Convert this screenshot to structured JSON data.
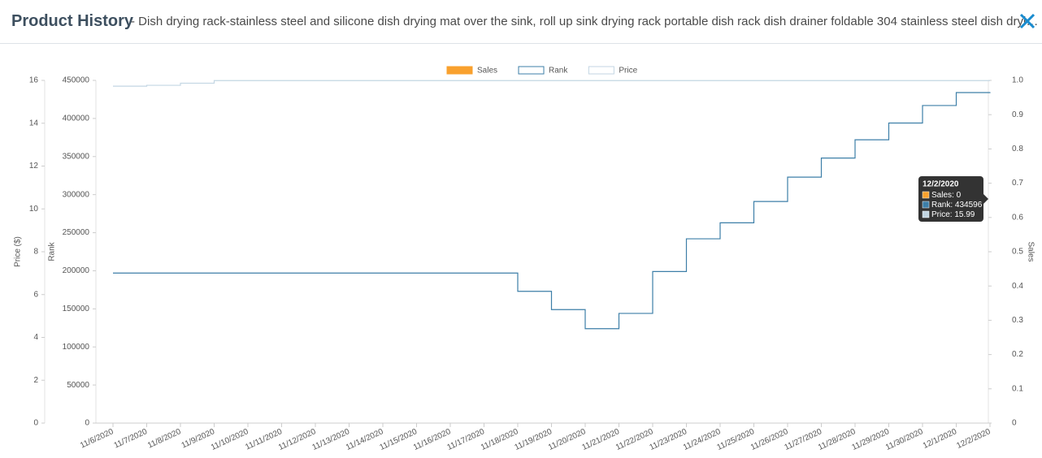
{
  "header": {
    "title": "Product History",
    "subtitle": "- Dish drying rack-stainless steel and silicone dish drying mat over the sink, roll up sink drying rack portable dish rack dish drainer foldable 304 stainless steel dish dryi…"
  },
  "chart_data": {
    "type": "combo",
    "categories": [
      "11/6/2020",
      "11/7/2020",
      "11/8/2020",
      "11/9/2020",
      "11/10/2020",
      "11/11/2020",
      "11/12/2020",
      "11/13/2020",
      "11/14/2020",
      "11/15/2020",
      "11/16/2020",
      "11/17/2020",
      "11/18/2020",
      "11/19/2020",
      "11/20/2020",
      "11/21/2020",
      "11/22/2020",
      "11/23/2020",
      "11/24/2020",
      "11/25/2020",
      "11/26/2020",
      "11/27/2020",
      "11/28/2020",
      "11/29/2020",
      "11/30/2020",
      "12/1/2020",
      "12/2/2020"
    ],
    "y3_label": "Price ($)",
    "y_label": "Rank",
    "y2_label": "Sales",
    "ylim": [
      0,
      450000
    ],
    "yticks": [
      0,
      50000,
      100000,
      150000,
      200000,
      250000,
      300000,
      350000,
      400000,
      450000
    ],
    "y2lim": [
      0,
      1
    ],
    "y2ticks": [
      0,
      0.1,
      0.2,
      0.3,
      0.4,
      0.5,
      0.6,
      0.7,
      0.8,
      0.9,
      {
        "value": 1,
        "label": "1.0"
      }
    ],
    "y3lim": [
      0,
      16
    ],
    "y3ticks": [
      0,
      2,
      4,
      6,
      8,
      10,
      12,
      14,
      16
    ],
    "series": [
      {
        "name": "Sales",
        "type": "bar",
        "axis": "y2",
        "color": "#f9a12e",
        "values": [
          0,
          0,
          0,
          0,
          0,
          0,
          0,
          0,
          0,
          0,
          0,
          0,
          0,
          0,
          0,
          0,
          0,
          0,
          0,
          0,
          0,
          0,
          0,
          0,
          0,
          0,
          0
        ]
      },
      {
        "name": "Rank",
        "type": "step",
        "axis": "y",
        "color": "#3d7fa8",
        "values": [
          197000,
          197000,
          197000,
          197000,
          197000,
          197000,
          197000,
          197000,
          197000,
          197000,
          197000,
          197000,
          173000,
          149000,
          124000,
          144000,
          199000,
          242000,
          263000,
          291000,
          323000,
          348000,
          372000,
          394000,
          417000,
          434000,
          434596
        ]
      },
      {
        "name": "Price",
        "type": "step",
        "axis": "y3",
        "color": "#c3d6e3",
        "values": [
          15.73,
          15.77,
          15.87,
          15.99,
          15.99,
          15.99,
          15.99,
          15.99,
          15.99,
          15.99,
          15.99,
          15.99,
          15.99,
          15.99,
          15.99,
          15.99,
          15.99,
          15.99,
          15.99,
          15.99,
          15.99,
          15.99,
          15.99,
          15.99,
          15.99,
          15.99,
          15.99
        ]
      }
    ],
    "tooltip": {
      "title": "12/2/2020",
      "lines": [
        "Sales: 0",
        "Rank: 434596",
        "Price: 15.99"
      ]
    }
  }
}
